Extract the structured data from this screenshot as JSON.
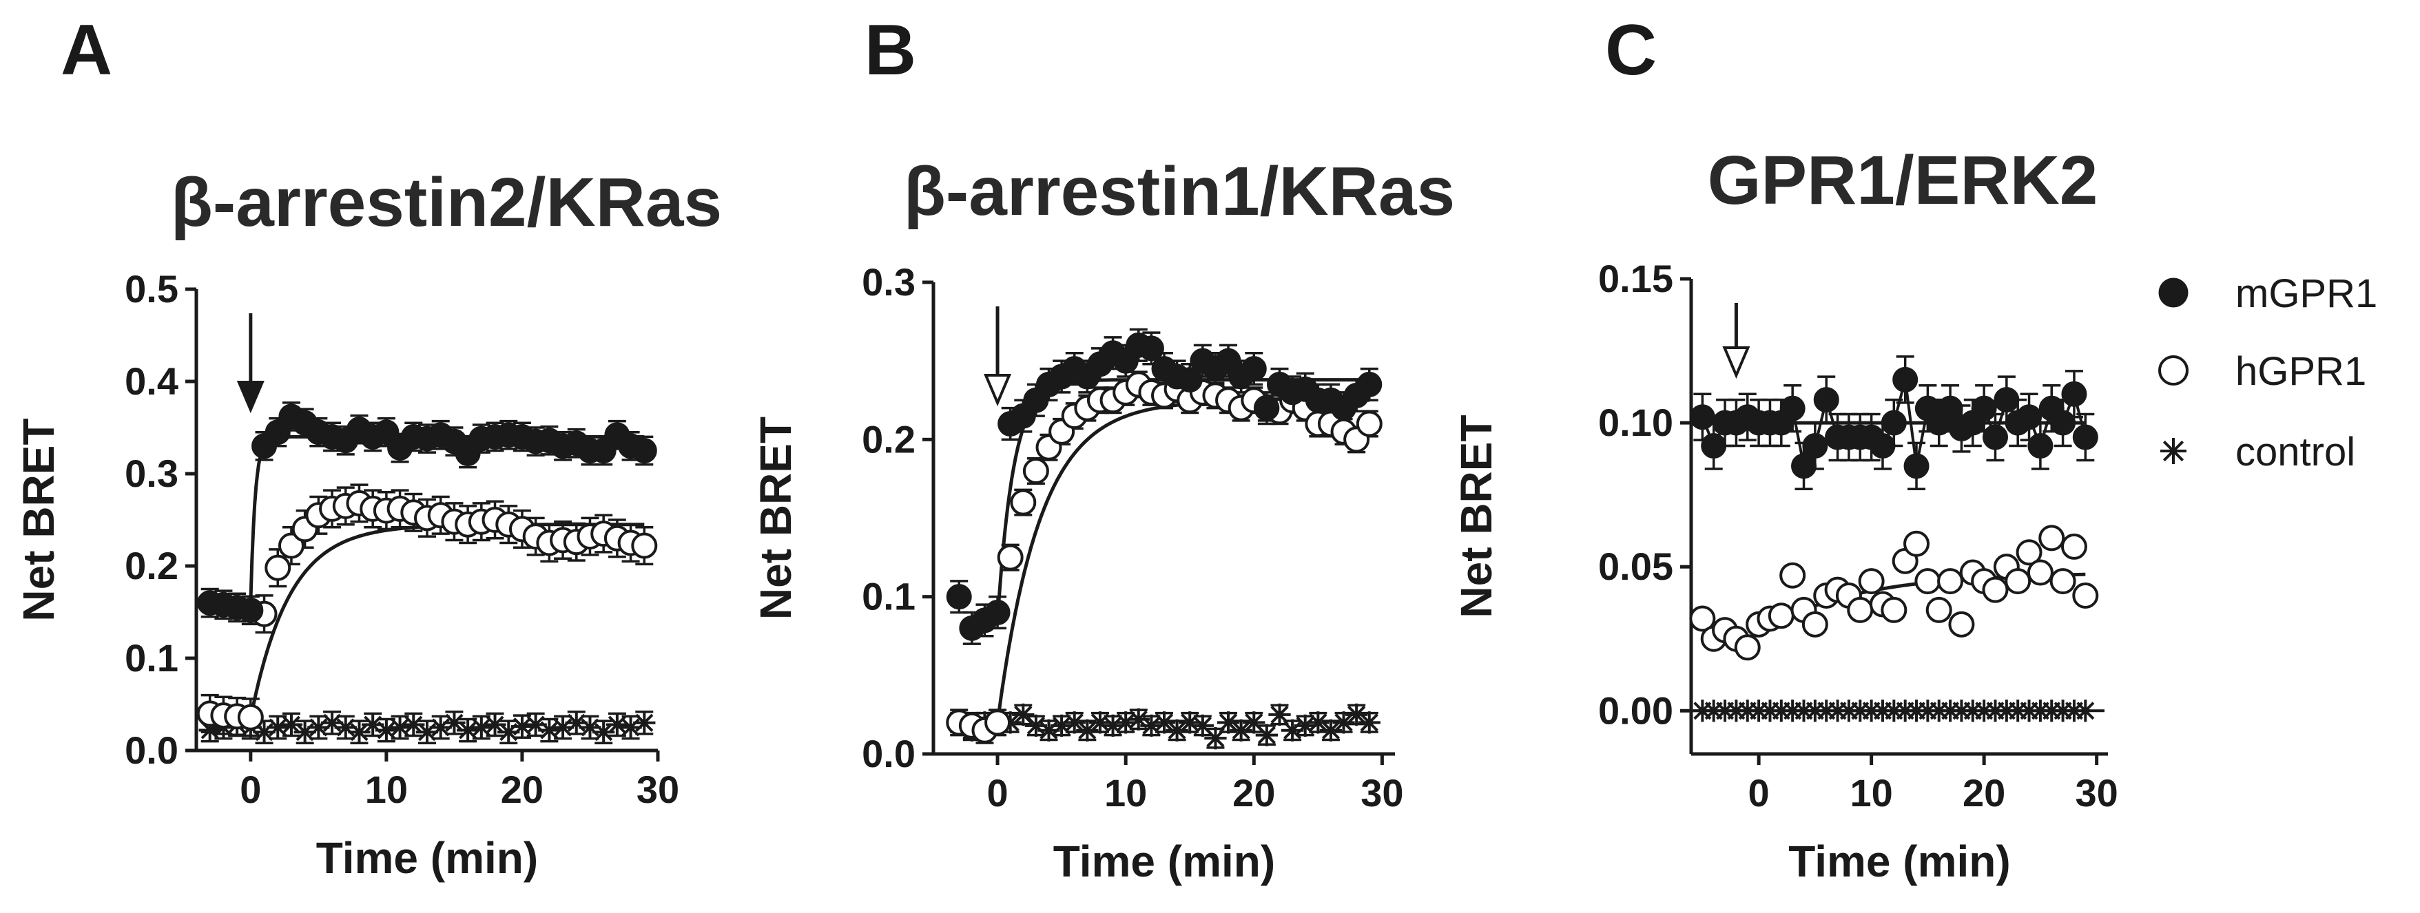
{
  "legend": [
    {
      "key": "mGPR1",
      "label": "mGPR1",
      "marker": "filled-circle"
    },
    {
      "key": "hGPR1",
      "label": "hGPR1",
      "marker": "open-circle"
    },
    {
      "key": "control",
      "label": "control",
      "marker": "asterisk"
    }
  ],
  "colors": {
    "ink": "#1a1a1a",
    "background": "#ffffff",
    "open_fill": "#ffffff"
  },
  "chart_data": [
    {
      "panel": "A",
      "type": "scatter",
      "title": "β-arrestin2/KRas",
      "xlabel": "Time (min)",
      "ylabel": "Net BRET",
      "xlim": [
        -4,
        30
      ],
      "ylim": [
        0,
        0.5
      ],
      "xticks": [
        0,
        10,
        20,
        30
      ],
      "xtick_labels": [
        "0",
        "10",
        "20",
        "30"
      ],
      "yticks": [
        0,
        0.1,
        0.2,
        0.3,
        0.4,
        0.5
      ],
      "ytick_labels": [
        "0.0",
        "0.1",
        "0.2",
        "0.3",
        "0.4",
        "0.5"
      ],
      "stimulus_arrow": {
        "time": 0,
        "style": "filled"
      },
      "baseline_dashed": true,
      "series": [
        {
          "name": "mGPR1",
          "marker": "filled-circle",
          "error": 0.015,
          "connect": false,
          "fit": {
            "base": 0.16,
            "plateau": 0.34,
            "k": 3.0,
            "start": 0
          },
          "x": [
            -3,
            -2,
            -1,
            0,
            1,
            2,
            3,
            4,
            5,
            6,
            7,
            8,
            9,
            10,
            11,
            12,
            13,
            14,
            15,
            16,
            17,
            18,
            19,
            20,
            21,
            22,
            23,
            24,
            25,
            26,
            27,
            28,
            29
          ],
          "y": [
            0.16,
            0.158,
            0.155,
            0.152,
            0.33,
            0.345,
            0.362,
            0.355,
            0.345,
            0.34,
            0.336,
            0.348,
            0.34,
            0.345,
            0.328,
            0.34,
            0.338,
            0.342,
            0.335,
            0.322,
            0.338,
            0.34,
            0.342,
            0.34,
            0.335,
            0.336,
            0.33,
            0.333,
            0.325,
            0.325,
            0.342,
            0.33,
            0.325
          ]
        },
        {
          "name": "hGPR1",
          "marker": "open-circle",
          "error": 0.02,
          "connect": false,
          "fit": {
            "base": 0.035,
            "plateau": 0.245,
            "k": 0.35,
            "start": 0
          },
          "x": [
            -3,
            -2,
            -1,
            0,
            1,
            2,
            3,
            4,
            5,
            6,
            7,
            8,
            9,
            10,
            11,
            12,
            13,
            14,
            15,
            16,
            17,
            18,
            19,
            20,
            21,
            22,
            23,
            24,
            25,
            26,
            27,
            28,
            29
          ],
          "y": [
            0.04,
            0.038,
            0.037,
            0.036,
            0.148,
            0.198,
            0.222,
            0.24,
            0.255,
            0.262,
            0.265,
            0.268,
            0.262,
            0.26,
            0.262,
            0.258,
            0.252,
            0.255,
            0.248,
            0.245,
            0.248,
            0.25,
            0.245,
            0.24,
            0.232,
            0.225,
            0.228,
            0.226,
            0.232,
            0.235,
            0.23,
            0.225,
            0.222
          ]
        },
        {
          "name": "control",
          "marker": "asterisk",
          "error": 0.012,
          "connect": false,
          "x": [
            -3,
            -2,
            -1,
            0,
            1,
            2,
            3,
            4,
            5,
            6,
            7,
            8,
            9,
            10,
            11,
            12,
            13,
            14,
            15,
            16,
            17,
            18,
            19,
            20,
            21,
            22,
            23,
            24,
            25,
            26,
            27,
            28,
            29
          ],
          "y": [
            0.022,
            0.025,
            0.028,
            0.025,
            0.02,
            0.025,
            0.028,
            0.02,
            0.025,
            0.03,
            0.025,
            0.02,
            0.028,
            0.022,
            0.025,
            0.028,
            0.02,
            0.025,
            0.03,
            0.022,
            0.025,
            0.028,
            0.02,
            0.026,
            0.028,
            0.022,
            0.025,
            0.03,
            0.025,
            0.02,
            0.028,
            0.025,
            0.03
          ]
        }
      ]
    },
    {
      "panel": "B",
      "type": "scatter",
      "title": "β-arrestin1/KRas",
      "xlabel": "Time (min)",
      "ylabel": "Net BRET",
      "xlim": [
        -5,
        31
      ],
      "ylim": [
        0,
        0.3
      ],
      "xticks": [
        0,
        10,
        20,
        30
      ],
      "xtick_labels": [
        "0",
        "10",
        "20",
        "30"
      ],
      "yticks": [
        0,
        0.1,
        0.2,
        0.3
      ],
      "ytick_labels": [
        "0.0",
        "0.1",
        "0.2",
        "0.3"
      ],
      "stimulus_arrow": {
        "time": 0,
        "style": "open"
      },
      "baseline_dashed": true,
      "series": [
        {
          "name": "mGPR1",
          "marker": "filled-circle",
          "error": 0.01,
          "connect": false,
          "fit": {
            "base": 0.085,
            "plateau": 0.238,
            "k": 0.8,
            "start": 0
          },
          "x": [
            -3,
            -2,
            -1,
            0,
            1,
            2,
            3,
            4,
            5,
            6,
            7,
            8,
            9,
            10,
            11,
            12,
            13,
            14,
            15,
            16,
            17,
            18,
            19,
            20,
            21,
            22,
            23,
            24,
            25,
            26,
            27,
            28,
            29
          ],
          "y": [
            0.1,
            0.08,
            0.085,
            0.09,
            0.21,
            0.215,
            0.225,
            0.235,
            0.24,
            0.245,
            0.24,
            0.248,
            0.255,
            0.25,
            0.26,
            0.258,
            0.245,
            0.24,
            0.238,
            0.25,
            0.245,
            0.25,
            0.24,
            0.245,
            0.22,
            0.235,
            0.23,
            0.232,
            0.225,
            0.225,
            0.22,
            0.228,
            0.235
          ]
        },
        {
          "name": "hGPR1",
          "marker": "open-circle",
          "error": 0.008,
          "connect": false,
          "fit": {
            "base": 0.02,
            "plateau": 0.225,
            "k": 0.3,
            "start": 0
          },
          "x": [
            -3,
            -2,
            -1,
            0,
            1,
            2,
            3,
            4,
            5,
            6,
            7,
            8,
            9,
            10,
            11,
            12,
            13,
            14,
            15,
            16,
            17,
            18,
            19,
            20,
            21,
            22,
            23,
            24,
            25,
            26,
            27,
            28,
            29
          ],
          "y": [
            0.02,
            0.018,
            0.015,
            0.02,
            0.125,
            0.16,
            0.18,
            0.195,
            0.205,
            0.215,
            0.22,
            0.225,
            0.225,
            0.23,
            0.235,
            0.23,
            0.228,
            0.232,
            0.225,
            0.23,
            0.228,
            0.225,
            0.22,
            0.225,
            0.22,
            0.218,
            0.225,
            0.22,
            0.21,
            0.21,
            0.205,
            0.2,
            0.21
          ]
        },
        {
          "name": "control",
          "marker": "asterisk",
          "error": 0.006,
          "connect": false,
          "x": [
            -3,
            -2,
            -1,
            0,
            1,
            2,
            3,
            4,
            5,
            6,
            7,
            8,
            9,
            10,
            11,
            12,
            13,
            14,
            15,
            16,
            17,
            18,
            19,
            20,
            21,
            22,
            23,
            24,
            25,
            26,
            27,
            28,
            29
          ],
          "y": [
            0.02,
            0.015,
            0.02,
            0.02,
            0.02,
            0.025,
            0.018,
            0.015,
            0.018,
            0.02,
            0.015,
            0.02,
            0.018,
            0.02,
            0.022,
            0.018,
            0.02,
            0.015,
            0.02,
            0.018,
            0.01,
            0.02,
            0.015,
            0.02,
            0.012,
            0.025,
            0.015,
            0.018,
            0.02,
            0.015,
            0.02,
            0.025,
            0.02
          ]
        }
      ]
    },
    {
      "panel": "C",
      "type": "scatter",
      "title": "GPR1/ERK2",
      "xlabel": "Time (min)",
      "ylabel": "Net BRET",
      "xlim": [
        -6,
        31
      ],
      "ylim": [
        -0.015,
        0.15
      ],
      "xticks": [
        0,
        10,
        20,
        30
      ],
      "xtick_labels": [
        "0",
        "10",
        "20",
        "30"
      ],
      "yticks": [
        0,
        0.05,
        0.1,
        0.15
      ],
      "ytick_labels": [
        "0.00",
        "0.05",
        "0.10",
        "0.15"
      ],
      "stimulus_arrow": {
        "time": -2,
        "style": "open"
      },
      "baseline_dashed": true,
      "series": [
        {
          "name": "mGPR1",
          "marker": "filled-circle",
          "error": 0.008,
          "connect": true,
          "fit": {
            "base": 0.1,
            "plateau": 0.1,
            "k": 1.0,
            "start": -5
          },
          "x": [
            -5,
            -4,
            -3,
            -2,
            -1,
            0,
            1,
            2,
            3,
            4,
            5,
            6,
            7,
            8,
            9,
            10,
            11,
            12,
            13,
            14,
            15,
            16,
            17,
            18,
            19,
            20,
            21,
            22,
            23,
            24,
            25,
            26,
            27,
            28,
            29
          ],
          "y": [
            0.102,
            0.092,
            0.1,
            0.1,
            0.102,
            0.1,
            0.1,
            0.1,
            0.105,
            0.085,
            0.092,
            0.108,
            0.095,
            0.095,
            0.095,
            0.095,
            0.092,
            0.1,
            0.115,
            0.085,
            0.105,
            0.1,
            0.105,
            0.098,
            0.1,
            0.105,
            0.095,
            0.108,
            0.1,
            0.102,
            0.092,
            0.105,
            0.1,
            0.11,
            0.095
          ]
        },
        {
          "name": "hGPR1",
          "marker": "open-circle",
          "error": 0.0,
          "connect": false,
          "fit": {
            "base": 0.027,
            "plateau": 0.048,
            "k": 0.12,
            "start": 0
          },
          "x": [
            -5,
            -4,
            -3,
            -2,
            -1,
            0,
            1,
            2,
            3,
            4,
            5,
            6,
            7,
            8,
            9,
            10,
            11,
            12,
            13,
            14,
            15,
            16,
            17,
            18,
            19,
            20,
            21,
            22,
            23,
            24,
            25,
            26,
            27,
            28,
            29
          ],
          "y": [
            0.032,
            0.025,
            0.028,
            0.025,
            0.022,
            0.03,
            0.032,
            0.033,
            0.047,
            0.035,
            0.03,
            0.04,
            0.042,
            0.04,
            0.035,
            0.045,
            0.037,
            0.035,
            0.052,
            0.058,
            0.045,
            0.035,
            0.045,
            0.03,
            0.048,
            0.045,
            0.042,
            0.05,
            0.045,
            0.055,
            0.048,
            0.06,
            0.045,
            0.057,
            0.04
          ]
        },
        {
          "name": "control",
          "marker": "asterisk",
          "error": 0.0,
          "connect": false,
          "x": [
            -5,
            -4,
            -3,
            -2,
            -1,
            0,
            1,
            2,
            3,
            4,
            5,
            6,
            7,
            8,
            9,
            10,
            11,
            12,
            13,
            14,
            15,
            16,
            17,
            18,
            19,
            20,
            21,
            22,
            23,
            24,
            25,
            26,
            27,
            28,
            29
          ],
          "y": [
            0,
            0,
            0,
            0,
            0,
            0,
            0,
            0,
            0,
            0,
            0,
            0,
            0,
            0,
            0,
            0,
            0,
            0,
            0,
            0,
            0,
            0,
            0,
            0,
            0,
            0,
            0,
            0,
            0,
            0,
            0,
            0,
            0,
            0,
            0
          ]
        }
      ]
    }
  ]
}
